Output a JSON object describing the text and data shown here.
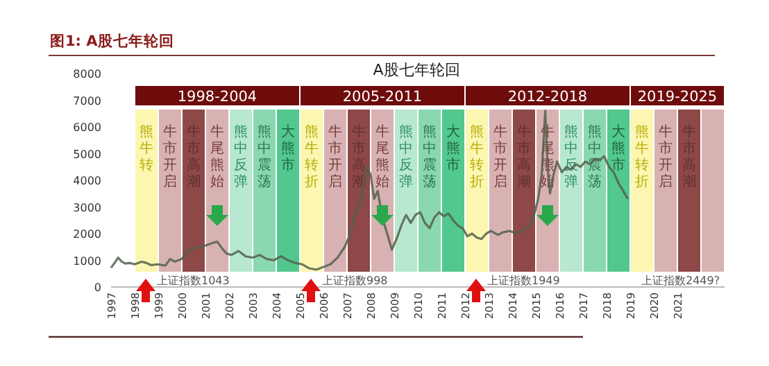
{
  "chart_data": {
    "type": "line",
    "title": "图1: A股七年轮回",
    "subtitle": "A股七年轮回",
    "xlim": [
      1997,
      2023
    ],
    "xticks": [
      1997,
      1998,
      1999,
      2000,
      2001,
      2002,
      2003,
      2004,
      2005,
      2006,
      2007,
      2008,
      2009,
      2010,
      2011,
      2012,
      2013,
      2014,
      2015,
      2016,
      2017,
      2018,
      2019,
      2020,
      2021
    ],
    "ylim": [
      0,
      8000
    ],
    "yticks": [
      0,
      1000,
      2000,
      3000,
      4000,
      5000,
      6000,
      7000,
      8000
    ],
    "grid": false,
    "marker": "none",
    "line_style": "solid",
    "series": [
      {
        "color": "#55604c",
        "x": [
          1997.0,
          1997.15,
          1997.3,
          1997.45,
          1997.6,
          1997.8,
          1998.0,
          1998.3,
          1998.5,
          1998.7,
          1999.0,
          1999.3,
          1999.5,
          1999.7,
          2000.0,
          2000.2,
          2000.5,
          2000.8,
          2001.0,
          2001.3,
          2001.5,
          2001.7,
          2001.9,
          2002.1,
          2002.4,
          2002.7,
          2003.0,
          2003.3,
          2003.6,
          2003.9,
          2004.2,
          2004.5,
          2004.8,
          2005.1,
          2005.4,
          2005.7,
          2006.0,
          2006.3,
          2006.6,
          2006.9,
          2007.1,
          2007.3,
          2007.5,
          2007.7,
          2007.85,
          2008.0,
          2008.15,
          2008.3,
          2008.5,
          2008.7,
          2008.9,
          2009.1,
          2009.3,
          2009.5,
          2009.7,
          2009.9,
          2010.1,
          2010.3,
          2010.5,
          2010.7,
          2010.9,
          2011.1,
          2011.3,
          2011.5,
          2011.7,
          2011.9,
          2012.1,
          2012.3,
          2012.5,
          2012.7,
          2012.9,
          2013.1,
          2013.4,
          2013.6,
          2013.9,
          2014.2,
          2014.5,
          2014.7,
          2014.9,
          2015.1,
          2015.25,
          2015.4,
          2015.5,
          2015.6,
          2015.75,
          2015.9,
          2016.1,
          2016.3,
          2016.5,
          2016.7,
          2016.9,
          2017.1,
          2017.3,
          2017.5,
          2017.7,
          2017.9,
          2018.1,
          2018.3,
          2018.5,
          2018.7,
          2018.9
        ],
        "values": [
          720,
          900,
          1100,
          950,
          880,
          900,
          850,
          950,
          900,
          820,
          850,
          800,
          1050,
          950,
          1050,
          1300,
          1450,
          1500,
          1550,
          1650,
          1700,
          1450,
          1250,
          1200,
          1350,
          1150,
          1100,
          1200,
          1050,
          1000,
          1150,
          1000,
          900,
          850,
          700,
          650,
          750,
          850,
          1100,
          1500,
          1900,
          2600,
          3000,
          3800,
          4500,
          4200,
          3300,
          3600,
          2600,
          2000,
          1400,
          1800,
          2300,
          2700,
          2400,
          2700,
          2800,
          2400,
          2200,
          2600,
          2800,
          2650,
          2750,
          2500,
          2300,
          2200,
          1900,
          2000,
          1850,
          1800,
          2000,
          2100,
          1950,
          2050,
          2100,
          2000,
          2150,
          2250,
          2600,
          3300,
          4200,
          6600,
          4500,
          3500,
          4200,
          4700,
          4300,
          4500,
          4400,
          4600,
          4500,
          4700,
          4600,
          4800,
          4750,
          4900,
          4500,
          4300,
          3900,
          3600,
          3300
        ]
      }
    ],
    "bands": [
      {
        "axis": "x",
        "from": 1998,
        "to": 2005,
        "label": "1998-2004",
        "color": "#6e0c0c"
      },
      {
        "axis": "x",
        "from": 2005,
        "to": 2012,
        "label": "2005-2011",
        "color": "#6e0c0c"
      },
      {
        "axis": "x",
        "from": 2012,
        "to": 2019,
        "label": "2012-2018",
        "color": "#6e0c0c"
      },
      {
        "axis": "x",
        "from": 2019,
        "to": 2023,
        "label": "2019-2025",
        "color": "#6e0c0c"
      },
      {
        "axis": "x",
        "from": 1998,
        "to": 1999,
        "label": "熊牛转",
        "color": "#fbf6b0"
      },
      {
        "axis": "x",
        "from": 1999,
        "to": 2000,
        "label": "牛市开启",
        "color": "#d8b2b2"
      },
      {
        "axis": "x",
        "from": 2000,
        "to": 2001,
        "label": "牛市高潮",
        "color": "#8e4848"
      },
      {
        "axis": "x",
        "from": 2001,
        "to": 2002,
        "label": "牛尾熊始",
        "color": "#d8b2b2"
      },
      {
        "axis": "x",
        "from": 2002,
        "to": 2003,
        "label": "熊中反弹",
        "color": "#b8e8d0"
      },
      {
        "axis": "x",
        "from": 2003,
        "to": 2004,
        "label": "熊中震荡",
        "color": "#8ad8b0"
      },
      {
        "axis": "x",
        "from": 2004,
        "to": 2005,
        "label": "大熊市",
        "color": "#52c88e"
      },
      {
        "axis": "x",
        "from": 2005,
        "to": 2006,
        "label": "熊牛转折",
        "color": "#fbf6b0"
      },
      {
        "axis": "x",
        "from": 2006,
        "to": 2007,
        "label": "牛市开启",
        "color": "#d8b2b2"
      },
      {
        "axis": "x",
        "from": 2007,
        "to": 2008,
        "label": "牛市高潮",
        "color": "#8e4848"
      },
      {
        "axis": "x",
        "from": 2008,
        "to": 2009,
        "label": "牛尾熊始",
        "color": "#d8b2b2"
      },
      {
        "axis": "x",
        "from": 2009,
        "to": 2010,
        "label": "熊中反弹",
        "color": "#b8e8d0"
      },
      {
        "axis": "x",
        "from": 2010,
        "to": 2011,
        "label": "熊中震荡",
        "color": "#8ad8b0"
      },
      {
        "axis": "x",
        "from": 2011,
        "to": 2012,
        "label": "大熊市",
        "color": "#52c88e"
      },
      {
        "axis": "x",
        "from": 2012,
        "to": 2013,
        "label": "熊牛转折",
        "color": "#fbf6b0"
      },
      {
        "axis": "x",
        "from": 2013,
        "to": 2014,
        "label": "牛市开启",
        "color": "#d8b2b2"
      },
      {
        "axis": "x",
        "from": 2014,
        "to": 2015,
        "label": "牛市高潮",
        "color": "#8e4848"
      },
      {
        "axis": "x",
        "from": 2015,
        "to": 2016,
        "label": "牛尾熊始",
        "color": "#d8b2b2"
      },
      {
        "axis": "x",
        "from": 2016,
        "to": 2017,
        "label": "熊中反弹",
        "color": "#b8e8d0"
      },
      {
        "axis": "x",
        "from": 2017,
        "to": 2018,
        "label": "熊中震荡",
        "color": "#8ad8b0"
      },
      {
        "axis": "x",
        "from": 2018,
        "to": 2019,
        "label": "大熊市",
        "color": "#52c88e"
      },
      {
        "axis": "x",
        "from": 2019,
        "to": 2020,
        "label": "熊牛转折",
        "color": "#fbf6b0"
      },
      {
        "axis": "x",
        "from": 2020,
        "to": 2021,
        "label": "牛市开启",
        "color": "#d8b2b2"
      },
      {
        "axis": "x",
        "from": 2021,
        "to": 2022,
        "label": "牛市高潮",
        "color": "#8e4848"
      },
      {
        "axis": "x",
        "from": 2022,
        "to": 2023,
        "color": "#d8b2b2"
      }
    ],
    "annotations": [
      "上证指数1043",
      "上证指数998",
      "上证指数1949",
      "上证指数2449?"
    ]
  }
}
